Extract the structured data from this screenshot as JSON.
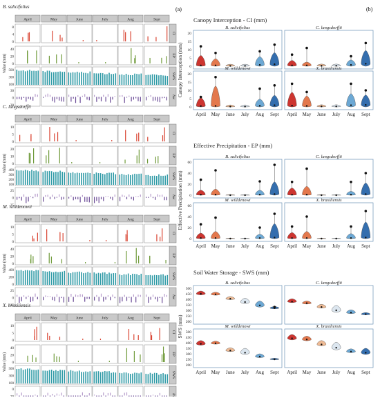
{
  "panel_labels": {
    "a": "(a)",
    "b": "(b)"
  },
  "colors": {
    "CI": "#d94432",
    "EP": "#6f9a3a",
    "SWS": "#2f9aa6",
    "dlt_pos": "#b79dcc",
    "dlt_neg": "#6a4a96",
    "strip": "#c9c9c9",
    "violin": [
      "#c8201a",
      "#e06a3a",
      "#eeb48a",
      "#d9e4ee",
      "#5d9fd0",
      "#1f5fa6"
    ]
  },
  "left": {
    "months": [
      "April",
      "May",
      "June",
      "July",
      "Aug",
      "Sept"
    ],
    "var_labels": [
      "CI",
      "EP",
      "SWS",
      "Δw"
    ],
    "ylabel": "Value (mm)",
    "species": [
      {
        "name": "B. salicifolius",
        "ticks": [
          [
            "8",
            "4",
            "0"
          ],
          [
            "40",
            "20",
            "0"
          ],
          [
            "500",
            "300",
            "100"
          ],
          [
            "30",
            "0",
            "-30"
          ]
        ]
      },
      {
        "name": "C. langsdorffii",
        "ticks": [
          [
            "10",
            "5",
            "0"
          ],
          [
            "20",
            "10",
            "0"
          ],
          [
            "400",
            "300",
            "200",
            "100"
          ],
          [
            "25",
            "0",
            "-25"
          ]
        ]
      },
      {
        "name": "M. willdenowii",
        "ticks": [
          [
            "10",
            "5",
            "0"
          ],
          [
            "40",
            "20",
            "0"
          ],
          [
            "400",
            "200",
            "0"
          ],
          [
            "25",
            "0",
            "-25"
          ]
        ]
      },
      {
        "name": "X. brasiliensis",
        "ticks": [
          [
            "10",
            "5",
            "0"
          ],
          [
            "40",
            "20",
            "0"
          ],
          [
            "500",
            "300",
            "100"
          ],
          [
            "0",
            "-20",
            "-40"
          ]
        ]
      }
    ]
  },
  "right": {
    "months": [
      "April",
      "May",
      "June",
      "July",
      "Aug",
      "Sept"
    ],
    "sections": [
      {
        "title": "Canopy Interception - CI (mm)",
        "ylabel": "Canopy Interception (mm)",
        "ylim": [
          0,
          20
        ],
        "ticks": [
          "0",
          "5",
          "10",
          "15",
          "20"
        ],
        "species": [
          "B. salicifolius",
          "C. langsdorffii",
          "M. willdenowi",
          "X. brasiliensis"
        ],
        "chart_data": {
          "type": "violin",
          "series": [
            {
              "name": "B. salicifolius",
              "values": [
                0.5,
                0.5,
                0.2,
                0.2,
                0.8,
                1.2
              ]
            },
            {
              "name": "C. langsdorffii",
              "values": [
                0.5,
                0.5,
                0.3,
                0.3,
                0.8,
                1.5
              ]
            },
            {
              "name": "M. willdenowi",
              "values": [
                0.5,
                0.6,
                0.2,
                0.2,
                0.7,
                1.0
              ]
            },
            {
              "name": "X. brasiliensis",
              "values": [
                0.8,
                0.6,
                0.3,
                0.3,
                1.0,
                1.2
              ]
            }
          ],
          "spread": [
            [
              6,
              4,
              1,
              1,
              5,
              7
            ],
            [
              3,
              2,
              1,
              1,
              3,
              8
            ],
            [
              5,
              12,
              1,
              1,
              4,
              6
            ],
            [
              8,
              6,
              1,
              1,
              7,
              6
            ]
          ],
          "outliers": [
            [
              12,
              8,
              0,
              0,
              9,
              13
            ],
            [
              7,
              11,
              0,
              0,
              6,
              14
            ],
            [
              6,
              18,
              0,
              0,
              11,
              13
            ],
            [
              14,
              9,
              0,
              0,
              14,
              10
            ]
          ]
        }
      },
      {
        "title": "Effective Precipitation - EP (mm)",
        "ylabel": "Effective Precipitation (mm)",
        "ylim": [
          0,
          60
        ],
        "ticks": [
          "0",
          "20",
          "40",
          "60"
        ],
        "species": [
          "B. salicifolius",
          "C. langsdorffii",
          "M. willdenowi",
          "X. brasiliensis"
        ],
        "chart_data": {
          "type": "violin",
          "series": [
            {
              "name": "B. salicifolius",
              "values": [
                1,
                1,
                0,
                0,
                1,
                2
              ]
            },
            {
              "name": "C. langsdorffii",
              "values": [
                1,
                1,
                0,
                0,
                1,
                2
              ]
            },
            {
              "name": "M. willdenowi",
              "values": [
                1,
                1,
                0,
                0,
                1,
                2
              ]
            },
            {
              "name": "X. brasiliensis",
              "values": [
                1,
                1,
                0,
                0,
                1,
                2
              ]
            }
          ],
          "spread": [
            [
              8,
              10,
              1,
              1,
              8,
              22
            ],
            [
              12,
              15,
              1,
              1,
              6,
              20
            ],
            [
              9,
              12,
              1,
              1,
              7,
              25
            ],
            [
              10,
              12,
              1,
              1,
              8,
              28
            ]
          ],
          "outliers": [
            [
              28,
              45,
              0,
              0,
              25,
              55
            ],
            [
              24,
              48,
              0,
              0,
              24,
              40
            ],
            [
              26,
              38,
              0,
              0,
              20,
              45
            ],
            [
              22,
              40,
              0,
              0,
              22,
              50
            ]
          ]
        }
      },
      {
        "title": "Soil Water Storage - SWS (mm)",
        "ylabel": "SWS (mm)",
        "ylim": [
          200,
          500
        ],
        "ticks": [
          "200",
          "250",
          "300",
          "350",
          "400",
          "450",
          "500"
        ],
        "species": [
          "B. salicifolius",
          "C. langsdorffii",
          "M. willdenowi",
          "X. brasiliensis"
        ],
        "chart_data": {
          "type": "violin",
          "series": [
            {
              "name": "B. salicifolius",
              "values": [
                450,
                445,
                405,
                375,
                345,
                320
              ]
            },
            {
              "name": "C. langsdorffii",
              "values": [
                380,
                365,
                330,
                300,
                280,
                265
              ]
            },
            {
              "name": "M. willdenowi",
              "values": [
                390,
                395,
                330,
                310,
                275,
                250
              ]
            },
            {
              "name": "X. brasiliensis",
              "values": [
                440,
                430,
                385,
                355,
                320,
                310
              ]
            }
          ],
          "spread": [
            [
              25,
              20,
              20,
              35,
              40,
              15
            ],
            [
              25,
              20,
              25,
              45,
              25,
              15
            ],
            [
              30,
              20,
              25,
              40,
              25,
              10
            ],
            [
              35,
              30,
              35,
              50,
              25,
              40
            ]
          ],
          "outliers": [
            [
              0,
              0,
              0,
              0,
              0,
              330
            ],
            [
              0,
              0,
              0,
              0,
              0,
              0
            ],
            [
              0,
              0,
              0,
              0,
              0,
              0
            ],
            [
              0,
              0,
              0,
              0,
              0,
              0
            ]
          ]
        }
      }
    ]
  }
}
